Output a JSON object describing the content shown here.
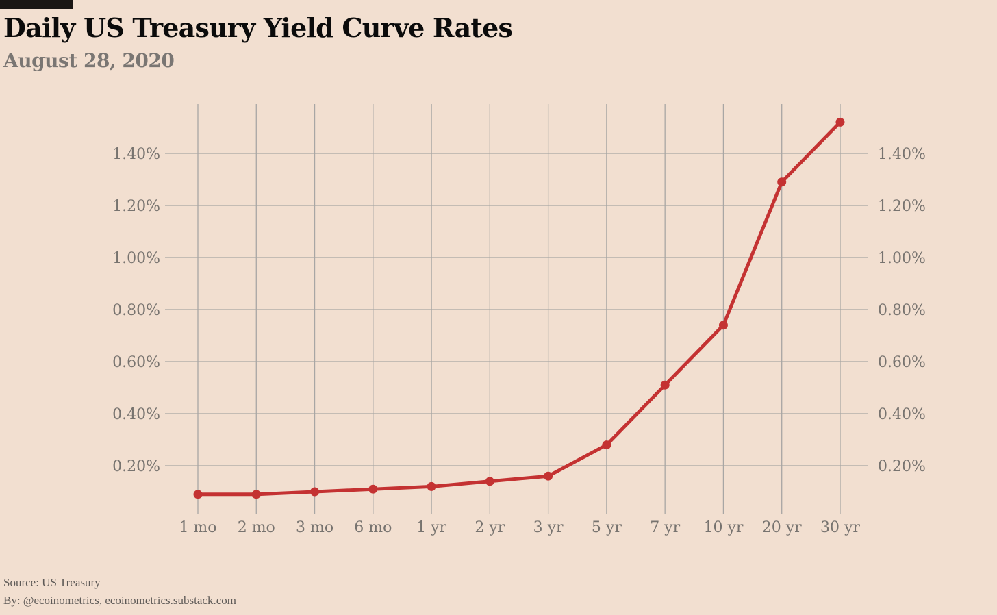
{
  "header": {
    "title": "Daily US Treasury Yield Curve Rates",
    "subtitle": "August 28, 2020"
  },
  "footer": {
    "source": "Source: US Treasury",
    "byline": "By: @ecoinometrics, ecoinometrics.substack.com"
  },
  "colors": {
    "background": "#f2dfd0",
    "line": "#c43232",
    "grid": "#a8a6a4",
    "tick_text": "#77736f",
    "title": "#0b0b0b",
    "subtitle": "#7a7673"
  },
  "chart_data": {
    "type": "line",
    "title": "Daily US Treasury Yield Curve Rates",
    "subtitle": "August 28, 2020",
    "xlabel": "",
    "ylabel": "",
    "categories": [
      "1 mo",
      "2 mo",
      "3 mo",
      "6 mo",
      "1 yr",
      "2 yr",
      "3 yr",
      "5 yr",
      "7 yr",
      "10 yr",
      "20 yr",
      "30 yr"
    ],
    "series": [
      {
        "values": [
          0.09,
          0.09,
          0.1,
          0.11,
          0.12,
          0.14,
          0.16,
          0.28,
          0.51,
          0.74,
          1.29,
          1.52
        ]
      }
    ],
    "y_ticks": [
      0.2,
      0.4,
      0.6,
      0.8,
      1.0,
      1.2,
      1.4
    ],
    "y_tick_labels": [
      "0.20%",
      "0.40%",
      "0.60%",
      "0.80%",
      "1.00%",
      "1.20%",
      "1.40%"
    ],
    "ylim": [
      0.028,
      1.61
    ],
    "grid": true,
    "y_axis_sides": [
      "left",
      "right"
    ],
    "legend": "none"
  }
}
